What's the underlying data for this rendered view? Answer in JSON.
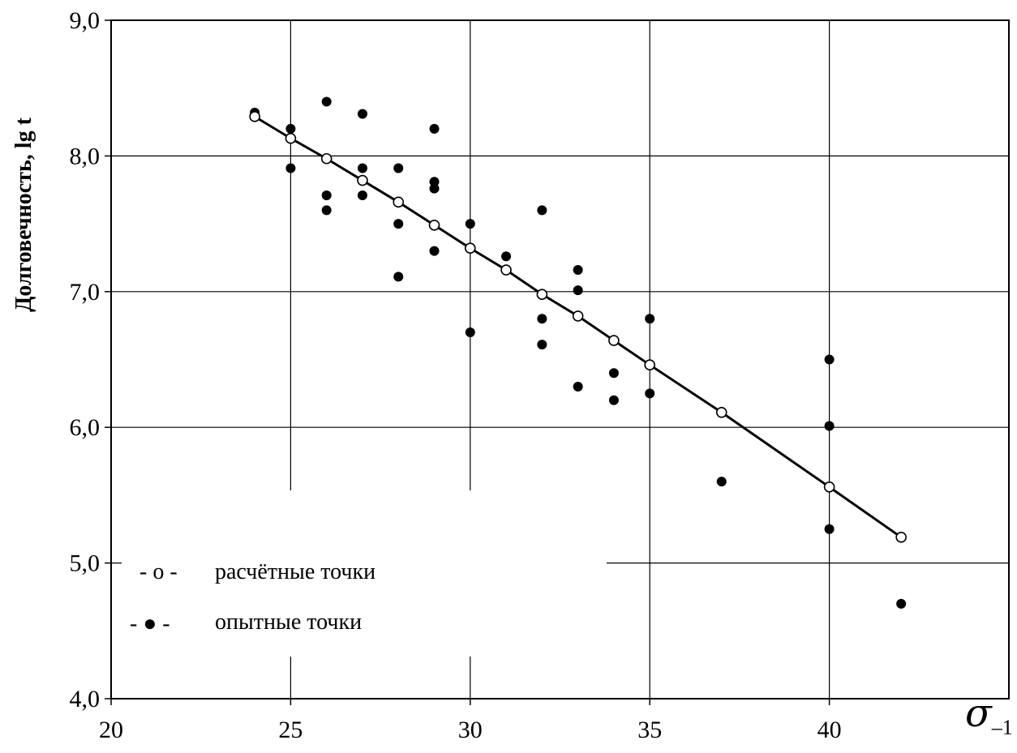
{
  "chart_data": {
    "type": "scatter",
    "title": "",
    "ylabel": "Долговечность, lg t",
    "xlabel_symbol": "σ",
    "xlabel_subscript": "–1",
    "xlim": [
      20,
      45
    ],
    "ylim": [
      4.0,
      9.0
    ],
    "x_ticks": [
      20,
      25,
      30,
      35,
      40
    ],
    "x_tick_labels": [
      "20",
      "25",
      "30",
      "35",
      "40"
    ],
    "y_ticks": [
      4.0,
      5.0,
      6.0,
      7.0,
      8.0,
      9.0
    ],
    "y_tick_labels": [
      "4,0",
      "5,0",
      "6,0",
      "7,0",
      "8,0",
      "9,0"
    ],
    "grid": true,
    "legend_position": "bottom-left",
    "series": [
      {
        "name": "расчётные точки",
        "legend_marker": "- o -",
        "marker": "open-circle",
        "line": true,
        "points": [
          [
            24,
            8.29
          ],
          [
            25,
            8.13
          ],
          [
            26,
            7.98
          ],
          [
            27,
            7.82
          ],
          [
            28,
            7.66
          ],
          [
            29,
            7.49
          ],
          [
            30,
            7.32
          ],
          [
            31,
            7.16
          ],
          [
            32,
            6.98
          ],
          [
            33,
            6.82
          ],
          [
            34,
            6.64
          ],
          [
            35,
            6.46
          ],
          [
            37,
            6.11
          ],
          [
            40,
            5.56
          ],
          [
            42,
            5.19
          ]
        ]
      },
      {
        "name": "опытные точки",
        "legend_marker": "- ● -",
        "marker": "filled-circle",
        "line": false,
        "points": [
          [
            24,
            8.32
          ],
          [
            25,
            8.2
          ],
          [
            25,
            7.91
          ],
          [
            26,
            8.4
          ],
          [
            26,
            7.71
          ],
          [
            26,
            7.6
          ],
          [
            27,
            8.31
          ],
          [
            27,
            7.91
          ],
          [
            27,
            7.71
          ],
          [
            28,
            7.91
          ],
          [
            28,
            7.5
          ],
          [
            28,
            7.11
          ],
          [
            29,
            8.2
          ],
          [
            29,
            7.81
          ],
          [
            29,
            7.76
          ],
          [
            29,
            7.3
          ],
          [
            30,
            7.5
          ],
          [
            30,
            6.7
          ],
          [
            31,
            7.26
          ],
          [
            32,
            7.6
          ],
          [
            32,
            6.8
          ],
          [
            32,
            6.61
          ],
          [
            33,
            7.16
          ],
          [
            33,
            7.01
          ],
          [
            33,
            6.3
          ],
          [
            34,
            6.4
          ],
          [
            34,
            6.2
          ],
          [
            35,
            6.8
          ],
          [
            35,
            6.25
          ],
          [
            37,
            5.6
          ],
          [
            40,
            6.5
          ],
          [
            40,
            6.01
          ],
          [
            40,
            5.25
          ],
          [
            42,
            4.7
          ]
        ]
      }
    ]
  }
}
